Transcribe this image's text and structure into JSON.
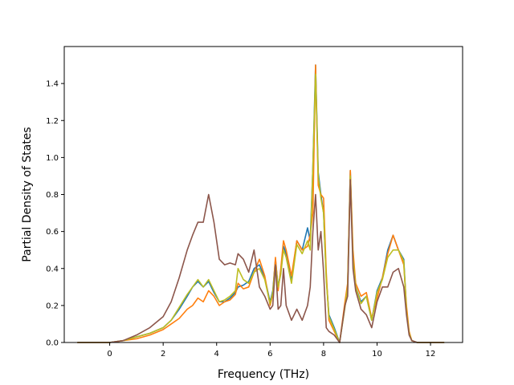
{
  "chart_data": {
    "type": "line",
    "title": "",
    "xlabel": "Frequency (THz)",
    "ylabel": "Partial Density of States",
    "xlim": [
      -1.7,
      13.2
    ],
    "ylim": [
      0.0,
      1.6
    ],
    "x_ticks": [
      "0",
      "2",
      "4",
      "6",
      "8",
      "10",
      "12"
    ],
    "y_ticks": [
      "0.0",
      "0.2",
      "0.4",
      "0.6",
      "0.8",
      "1.0",
      "1.2",
      "1.4"
    ],
    "grid": false,
    "legend": "none",
    "series": [
      {
        "color": "#1f77b4",
        "x": [
          -1.2,
          -0.5,
          0.0,
          0.5,
          1.0,
          1.5,
          2.0,
          2.3,
          2.6,
          2.9,
          3.1,
          3.3,
          3.5,
          3.7,
          3.9,
          4.1,
          4.3,
          4.5,
          4.7,
          4.8,
          5.0,
          5.2,
          5.4,
          5.6,
          5.8,
          6.0,
          6.1,
          6.2,
          6.3,
          6.4,
          6.5,
          6.6,
          6.8,
          7.0,
          7.2,
          7.4,
          7.5,
          7.6,
          7.7,
          7.8,
          7.9,
          8.0,
          8.1,
          8.2,
          8.4,
          8.6,
          8.8,
          8.9,
          9.0,
          9.1,
          9.2,
          9.4,
          9.6,
          9.8,
          10.0,
          10.2,
          10.4,
          10.6,
          10.8,
          11.0,
          11.1,
          11.2,
          11.3,
          11.5,
          12.0,
          12.5
        ],
        "y": [
          0.0,
          0.0,
          0.0,
          0.01,
          0.03,
          0.05,
          0.08,
          0.12,
          0.18,
          0.25,
          0.3,
          0.33,
          0.3,
          0.33,
          0.27,
          0.22,
          0.22,
          0.24,
          0.27,
          0.3,
          0.31,
          0.33,
          0.4,
          0.42,
          0.35,
          0.22,
          0.28,
          0.45,
          0.3,
          0.38,
          0.52,
          0.48,
          0.34,
          0.55,
          0.5,
          0.62,
          0.55,
          0.95,
          1.5,
          0.92,
          0.8,
          0.7,
          0.35,
          0.15,
          0.08,
          0.0,
          0.2,
          0.3,
          0.93,
          0.45,
          0.3,
          0.22,
          0.25,
          0.12,
          0.28,
          0.35,
          0.5,
          0.58,
          0.5,
          0.45,
          0.18,
          0.05,
          0.01,
          0.0,
          0.0,
          0.0
        ]
      },
      {
        "color": "#ff7f0e",
        "x": [
          -1.2,
          -0.5,
          0.0,
          0.5,
          1.0,
          1.5,
          2.0,
          2.3,
          2.6,
          2.9,
          3.1,
          3.3,
          3.5,
          3.7,
          3.9,
          4.1,
          4.3,
          4.5,
          4.7,
          4.8,
          5.0,
          5.2,
          5.4,
          5.6,
          5.8,
          6.0,
          6.1,
          6.2,
          6.3,
          6.4,
          6.5,
          6.6,
          6.8,
          7.0,
          7.2,
          7.4,
          7.5,
          7.6,
          7.7,
          7.8,
          7.9,
          8.0,
          8.1,
          8.2,
          8.4,
          8.6,
          8.8,
          8.9,
          9.0,
          9.1,
          9.2,
          9.4,
          9.6,
          9.8,
          10.0,
          10.2,
          10.4,
          10.6,
          10.8,
          11.0,
          11.1,
          11.2,
          11.3,
          11.5,
          12.0,
          12.5
        ],
        "y": [
          0.0,
          0.0,
          0.0,
          0.01,
          0.02,
          0.04,
          0.07,
          0.1,
          0.13,
          0.18,
          0.2,
          0.24,
          0.22,
          0.28,
          0.25,
          0.2,
          0.22,
          0.23,
          0.26,
          0.32,
          0.29,
          0.3,
          0.38,
          0.45,
          0.36,
          0.2,
          0.26,
          0.46,
          0.28,
          0.4,
          0.55,
          0.5,
          0.36,
          0.55,
          0.5,
          0.52,
          0.58,
          0.7,
          1.5,
          0.85,
          0.8,
          0.78,
          0.38,
          0.12,
          0.06,
          0.0,
          0.22,
          0.32,
          0.93,
          0.5,
          0.32,
          0.25,
          0.27,
          0.13,
          0.24,
          0.35,
          0.48,
          0.58,
          0.5,
          0.42,
          0.2,
          0.06,
          0.01,
          0.0,
          0.0,
          0.0
        ]
      },
      {
        "color": "#bcbd22",
        "x": [
          -1.2,
          -0.5,
          0.0,
          0.5,
          1.0,
          1.5,
          2.0,
          2.3,
          2.6,
          2.9,
          3.1,
          3.3,
          3.5,
          3.7,
          3.9,
          4.1,
          4.3,
          4.5,
          4.7,
          4.8,
          5.0,
          5.2,
          5.4,
          5.6,
          5.8,
          6.0,
          6.1,
          6.2,
          6.3,
          6.4,
          6.5,
          6.6,
          6.8,
          7.0,
          7.2,
          7.4,
          7.5,
          7.6,
          7.7,
          7.8,
          7.9,
          8.0,
          8.1,
          8.2,
          8.4,
          8.6,
          8.8,
          8.9,
          9.0,
          9.1,
          9.2,
          9.4,
          9.6,
          9.8,
          10.0,
          10.2,
          10.4,
          10.6,
          10.8,
          11.0,
          11.1,
          11.2,
          11.3,
          11.5,
          12.0,
          12.5
        ],
        "y": [
          0.0,
          0.0,
          0.0,
          0.01,
          0.03,
          0.05,
          0.08,
          0.12,
          0.19,
          0.26,
          0.3,
          0.34,
          0.3,
          0.34,
          0.28,
          0.22,
          0.23,
          0.25,
          0.28,
          0.4,
          0.34,
          0.32,
          0.38,
          0.4,
          0.34,
          0.21,
          0.27,
          0.42,
          0.3,
          0.37,
          0.5,
          0.46,
          0.32,
          0.53,
          0.48,
          0.55,
          0.5,
          0.95,
          1.45,
          0.9,
          0.78,
          0.7,
          0.34,
          0.14,
          0.07,
          0.0,
          0.19,
          0.3,
          0.9,
          0.45,
          0.3,
          0.21,
          0.25,
          0.12,
          0.27,
          0.34,
          0.46,
          0.5,
          0.5,
          0.44,
          0.17,
          0.05,
          0.01,
          0.0,
          0.0,
          0.0
        ]
      },
      {
        "color": "#8c564b",
        "x": [
          -1.2,
          -0.5,
          0.0,
          0.5,
          1.0,
          1.5,
          2.0,
          2.3,
          2.6,
          2.9,
          3.1,
          3.3,
          3.5,
          3.7,
          3.9,
          4.1,
          4.3,
          4.5,
          4.7,
          4.8,
          5.0,
          5.2,
          5.4,
          5.6,
          5.8,
          6.0,
          6.1,
          6.2,
          6.3,
          6.4,
          6.5,
          6.6,
          6.8,
          7.0,
          7.2,
          7.4,
          7.5,
          7.6,
          7.7,
          7.8,
          7.9,
          8.0,
          8.1,
          8.2,
          8.4,
          8.6,
          8.8,
          8.9,
          9.0,
          9.1,
          9.2,
          9.4,
          9.6,
          9.8,
          10.0,
          10.2,
          10.4,
          10.6,
          10.8,
          11.0,
          11.1,
          11.2,
          11.3,
          11.5,
          12.0,
          12.5
        ],
        "y": [
          0.0,
          0.0,
          0.0,
          0.01,
          0.04,
          0.08,
          0.14,
          0.22,
          0.35,
          0.5,
          0.58,
          0.65,
          0.65,
          0.8,
          0.65,
          0.45,
          0.42,
          0.43,
          0.42,
          0.48,
          0.45,
          0.38,
          0.5,
          0.3,
          0.25,
          0.18,
          0.2,
          0.42,
          0.18,
          0.2,
          0.4,
          0.2,
          0.12,
          0.18,
          0.12,
          0.2,
          0.3,
          0.6,
          0.8,
          0.5,
          0.6,
          0.38,
          0.08,
          0.06,
          0.04,
          0.0,
          0.2,
          0.25,
          0.88,
          0.4,
          0.28,
          0.18,
          0.15,
          0.08,
          0.22,
          0.3,
          0.3,
          0.38,
          0.4,
          0.3,
          0.15,
          0.04,
          0.01,
          0.0,
          0.0,
          0.0
        ]
      }
    ]
  }
}
